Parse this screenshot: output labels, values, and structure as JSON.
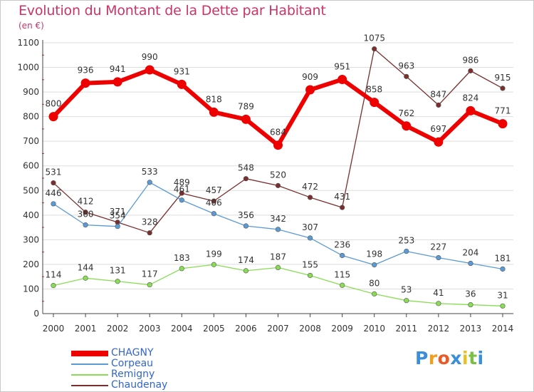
{
  "chart_data": {
    "type": "line",
    "title": "Evolution du Montant de la Dette par Habitant",
    "unit_label": "(en €)",
    "x": [
      "2000",
      "2001",
      "2002",
      "2003",
      "2004",
      "2005",
      "2006",
      "2007",
      "2008",
      "2009",
      "2010",
      "2011",
      "2012",
      "2013",
      "2014"
    ],
    "y_ticks": [
      "0",
      "100",
      "200",
      "300",
      "400",
      "500",
      "600",
      "700",
      "800",
      "900",
      "1000",
      "1100"
    ],
    "ylim": [
      0,
      1100
    ],
    "grid": "horizontal",
    "legend_position": "bottom-left",
    "series": [
      {
        "name": "CHAGNY",
        "color": "#ee0000",
        "values": [
          800,
          936,
          941,
          990,
          931,
          818,
          789,
          684,
          909,
          951,
          858,
          762,
          697,
          824,
          771
        ],
        "labels": [
          "800",
          "936",
          "941",
          "990",
          "931",
          "818",
          "789",
          "684",
          "909",
          "951",
          "858",
          "762",
          "697",
          "824",
          "771"
        ]
      },
      {
        "name": "Corpeau",
        "color": "#5b9bd5",
        "values": [
          446,
          360,
          354,
          533,
          461,
          406,
          356,
          342,
          307,
          236,
          198,
          253,
          227,
          204,
          181
        ],
        "labels": [
          "446",
          "360",
          "354",
          "533",
          "461",
          "406",
          "356",
          "342",
          "307",
          "236",
          "198",
          "253",
          "227",
          "204",
          "181"
        ]
      },
      {
        "name": "Remigny",
        "color": "#88dd55",
        "values": [
          114,
          144,
          131,
          117,
          183,
          199,
          174,
          187,
          155,
          115,
          80,
          53,
          41,
          36,
          31
        ],
        "labels": [
          "114",
          "144",
          "131",
          "117",
          "183",
          "199",
          "174",
          "187",
          "155",
          "115",
          "80",
          "53",
          "41",
          "36",
          "31"
        ]
      },
      {
        "name": "Chaudenay",
        "color": "#7a2e2e",
        "values": [
          531,
          412,
          371,
          328,
          489,
          457,
          548,
          520,
          472,
          431,
          1075,
          963,
          847,
          986,
          915
        ],
        "labels": [
          "531",
          "412",
          "371",
          "328",
          "489",
          "457",
          "548",
          "520",
          "472",
          "431",
          "1075",
          "963",
          "847",
          "986",
          "915"
        ]
      }
    ]
  },
  "logo": {
    "letters": [
      {
        "ch": "P",
        "color": "#3a8fd9"
      },
      {
        "ch": "r",
        "color": "#f0a020"
      },
      {
        "ch": "o",
        "color": "#e85a28"
      },
      {
        "ch": "x",
        "color": "#3a8fd9"
      },
      {
        "ch": "i",
        "color": "#e8c020"
      },
      {
        "ch": "t",
        "color": "#7bc043"
      },
      {
        "ch": "i",
        "color": "#3a8fd9"
      }
    ]
  }
}
